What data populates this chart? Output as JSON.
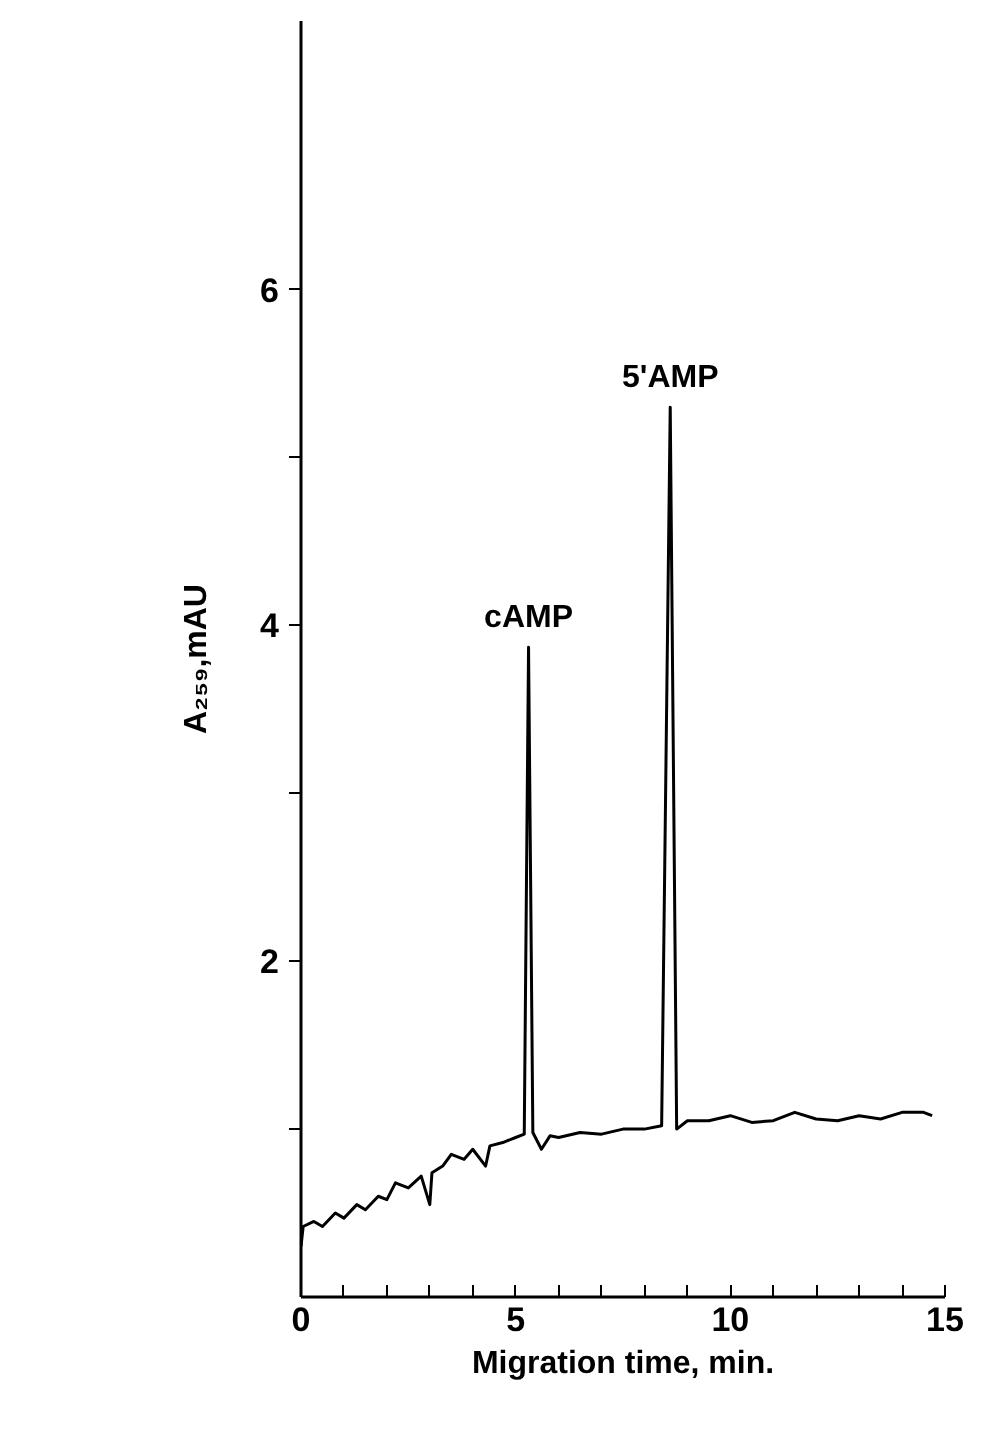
{
  "chart_data": {
    "type": "line",
    "xlabel": "Migration time, min.",
    "ylabel": "A₂₅₉,mAU",
    "x": [
      0,
      0.05,
      0.3,
      0.5,
      0.8,
      1.0,
      1.3,
      1.5,
      1.8,
      2.0,
      2.2,
      2.5,
      2.8,
      3.0,
      3.05,
      3.3,
      3.5,
      3.8,
      4.0,
      4.3,
      4.4,
      4.7,
      5.0,
      5.2,
      5.3,
      5.4,
      5.6,
      5.8,
      6.0,
      6.5,
      7.0,
      7.5,
      8.0,
      8.4,
      8.6,
      8.75,
      9.0,
      9.5,
      10,
      10.5,
      11,
      11.5,
      12,
      12.5,
      13,
      13.5,
      14,
      14.5,
      14.7
    ],
    "series": [
      {
        "color": "#000000",
        "values": [
          0.3,
          0.42,
          0.45,
          0.42,
          0.5,
          0.47,
          0.55,
          0.52,
          0.6,
          0.58,
          0.68,
          0.65,
          0.72,
          0.55,
          0.74,
          0.78,
          0.85,
          0.82,
          0.88,
          0.78,
          0.9,
          0.92,
          0.95,
          0.97,
          3.87,
          0.98,
          0.88,
          0.96,
          0.95,
          0.98,
          0.97,
          1.0,
          1.0,
          1.02,
          5.3,
          1.0,
          1.05,
          1.05,
          1.08,
          1.04,
          1.05,
          1.1,
          1.06,
          1.05,
          1.08,
          1.06,
          1.1,
          1.1,
          1.08
        ]
      }
    ],
    "annotations": [
      {
        "text": "cAMP",
        "x": 5.3,
        "y": 3.87
      },
      {
        "text": "5'AMP",
        "x": 8.6,
        "y": 5.3
      }
    ],
    "xlim": [
      0,
      15
    ],
    "xticks": [
      0,
      {
        "value": 1,
        "label": null
      },
      {
        "value": 2,
        "label": null
      },
      {
        "value": 3,
        "label": null
      },
      {
        "value": 4,
        "label": null
      },
      5,
      {
        "value": 6,
        "label": null
      },
      {
        "value": 7,
        "label": null
      },
      {
        "value": 8,
        "label": null
      },
      {
        "value": 9,
        "label": null
      },
      10,
      {
        "value": 11,
        "label": null
      },
      {
        "value": 12,
        "label": null
      },
      {
        "value": 13,
        "label": null
      },
      {
        "value": 14,
        "label": null
      },
      15
    ],
    "ylim": [
      0,
      7.6
    ],
    "yticks": [
      {
        "value": 1,
        "label": null
      },
      2,
      {
        "value": 3,
        "label": null
      },
      4,
      {
        "value": 5,
        "label": null
      },
      6
    ],
    "grid": false,
    "marker": "none",
    "line_style": "solid"
  }
}
